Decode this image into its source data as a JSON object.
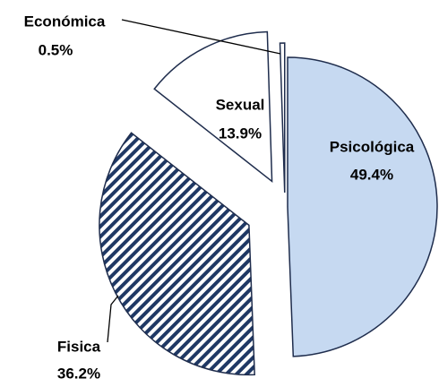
{
  "chart_data": {
    "type": "pie",
    "categories": [
      "Psicológica",
      "Fisica",
      "Sexual",
      "Económica"
    ],
    "values": [
      49.4,
      36.2,
      13.9,
      0.5
    ],
    "value_labels": [
      "49.4%",
      "36.2%",
      "13.9%",
      "0.5%"
    ],
    "colors": [
      "#c6d9f1",
      "#1f3864",
      "#ffffff",
      "#ffffff"
    ],
    "hatch": [
      false,
      true,
      false,
      false
    ]
  }
}
